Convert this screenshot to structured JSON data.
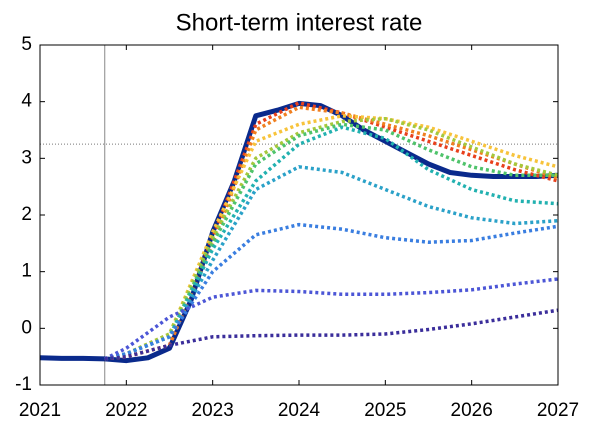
{
  "chart_data": {
    "type": "line",
    "title": "Short-term interest rate",
    "xlim": [
      2021,
      2027
    ],
    "xticks": [
      2021,
      2022,
      2023,
      2024,
      2025,
      2026,
      2027
    ],
    "ylim": [
      -1,
      5
    ],
    "yticks": [
      -1,
      0,
      1,
      2,
      3,
      4,
      5
    ],
    "vline_x": 2021.75,
    "hline_y": 3.25,
    "series": [
      {
        "color": "#0a2a8c",
        "style": "solid",
        "x": [
          2021,
          2021.25,
          2021.5,
          2021.75,
          2022,
          2022.25,
          2022.5,
          2022.75,
          2023,
          2023.25,
          2023.5,
          2023.75,
          2024,
          2024.25,
          2024.5,
          2024.75,
          2025,
          2025.25,
          2025.5,
          2025.75,
          2026,
          2026.25,
          2026.5,
          2026.75,
          2027
        ],
        "values": [
          -0.52,
          -0.53,
          -0.53,
          -0.54,
          -0.57,
          -0.52,
          -0.35,
          0.5,
          1.7,
          2.6,
          3.75,
          3.85,
          3.97,
          3.93,
          3.75,
          3.5,
          3.3,
          3.1,
          2.9,
          2.75,
          2.7,
          2.68,
          2.68,
          2.68,
          2.7
        ]
      },
      {
        "color": "#e8401c",
        "style": "dotted",
        "x": [
          2021.75,
          2022,
          2022.5,
          2023,
          2023.5,
          2024,
          2024.5,
          2025,
          2025.5,
          2026,
          2026.5,
          2027
        ],
        "values": [
          -0.54,
          -0.5,
          -0.3,
          1.6,
          3.6,
          3.98,
          3.8,
          3.55,
          3.3,
          3.05,
          2.8,
          2.6
        ]
      },
      {
        "color": "#f07f20",
        "style": "dotted",
        "x": [
          2021.75,
          2022,
          2022.5,
          2023,
          2023.5,
          2024,
          2024.5,
          2025,
          2025.5,
          2026,
          2026.5,
          2027
        ],
        "values": [
          -0.54,
          -0.5,
          -0.3,
          1.5,
          3.5,
          3.9,
          3.8,
          3.6,
          3.4,
          3.15,
          2.9,
          2.65
        ]
      },
      {
        "color": "#f7c33b",
        "style": "dotted",
        "x": [
          2021.75,
          2022,
          2022.5,
          2023,
          2023.5,
          2024,
          2024.5,
          2025,
          2025.5,
          2026,
          2026.5,
          2027
        ],
        "values": [
          -0.54,
          -0.45,
          -0.1,
          1.7,
          3.3,
          3.6,
          3.75,
          3.7,
          3.55,
          3.3,
          3.05,
          2.85
        ]
      },
      {
        "color": "#a5c83c",
        "style": "dotted",
        "x": [
          2021.75,
          2022,
          2022.5,
          2023,
          2023.5,
          2024,
          2024.5,
          2025,
          2025.5,
          2026,
          2026.5,
          2027
        ],
        "values": [
          -0.54,
          -0.45,
          -0.1,
          1.6,
          3.0,
          3.45,
          3.65,
          3.7,
          3.5,
          3.2,
          2.9,
          2.7
        ]
      },
      {
        "color": "#4fc36b",
        "style": "dotted",
        "x": [
          2021.75,
          2022,
          2022.5,
          2023,
          2023.5,
          2024,
          2024.5,
          2025,
          2025.5,
          2026,
          2026.5,
          2027
        ],
        "values": [
          -0.54,
          -0.45,
          -0.15,
          1.5,
          2.9,
          3.4,
          3.6,
          3.5,
          3.15,
          2.85,
          2.7,
          2.7
        ]
      },
      {
        "color": "#22b1b0",
        "style": "dotted",
        "x": [
          2021.75,
          2022,
          2022.5,
          2023,
          2023.5,
          2024,
          2024.5,
          2025,
          2025.5,
          2026,
          2026.5,
          2027
        ],
        "values": [
          -0.54,
          -0.45,
          -0.15,
          1.4,
          2.6,
          3.25,
          3.55,
          3.35,
          2.8,
          2.45,
          2.25,
          2.2
        ]
      },
      {
        "color": "#2aa1c8",
        "style": "dotted",
        "x": [
          2021.75,
          2022,
          2022.5,
          2023,
          2023.5,
          2024,
          2024.5,
          2025,
          2025.5,
          2026,
          2026.5,
          2027
        ],
        "values": [
          -0.54,
          -0.45,
          -0.15,
          1.2,
          2.45,
          2.85,
          2.75,
          2.45,
          2.15,
          1.95,
          1.85,
          1.9
        ]
      },
      {
        "color": "#3a7ee0",
        "style": "dotted",
        "x": [
          2021.75,
          2022,
          2022.5,
          2023,
          2023.5,
          2024,
          2024.5,
          2025,
          2025.5,
          2026,
          2026.5,
          2027
        ],
        "values": [
          -0.54,
          -0.45,
          -0.15,
          1.0,
          1.65,
          1.83,
          1.75,
          1.6,
          1.52,
          1.55,
          1.68,
          1.8
        ]
      },
      {
        "color": "#4c56d6",
        "style": "dotted",
        "x": [
          2021.75,
          2022,
          2022.5,
          2023,
          2023.5,
          2024,
          2024.5,
          2025,
          2025.5,
          2026,
          2026.5,
          2027
        ],
        "values": [
          -0.54,
          -0.35,
          0.2,
          0.55,
          0.67,
          0.65,
          0.6,
          0.6,
          0.63,
          0.68,
          0.78,
          0.87
        ]
      },
      {
        "color": "#3b2e9b",
        "style": "dotted",
        "x": [
          2021.75,
          2022,
          2022.5,
          2023,
          2023.5,
          2024,
          2024.5,
          2025,
          2025.5,
          2026,
          2026.5,
          2027
        ],
        "values": [
          -0.54,
          -0.5,
          -0.3,
          -0.15,
          -0.13,
          -0.12,
          -0.12,
          -0.1,
          -0.02,
          0.08,
          0.2,
          0.32
        ]
      }
    ]
  }
}
